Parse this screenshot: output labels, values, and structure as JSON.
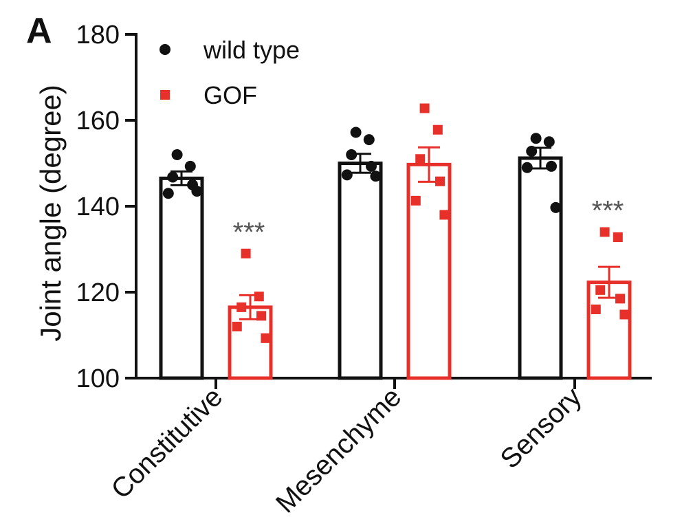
{
  "panel_label": "A",
  "chart_data": {
    "type": "bar",
    "categories": [
      "Constitutive",
      "Mesenchyme",
      "Sensory"
    ],
    "ylabel": "Joint angle (degree)",
    "xlabel": "",
    "ylim": [
      100,
      180
    ],
    "yticks": [
      100,
      120,
      140,
      160,
      180
    ],
    "legend_position": "top-left",
    "series": [
      {
        "name": "wild type",
        "color": "#111111",
        "marker": "circle",
        "values": [
          146.5,
          150.0,
          151.2
        ],
        "sem": [
          1.6,
          2.2,
          2.4
        ],
        "points": [
          [
            152.0,
            149.3,
            146.8,
            145.0,
            143.0,
            143.5
          ],
          [
            157.2,
            155.5,
            152.0,
            149.3,
            147.3,
            147.0
          ],
          [
            155.8,
            155.0,
            152.8,
            149.3,
            149.0,
            139.7
          ]
        ]
      },
      {
        "name": "GOF",
        "color": "#e8302a",
        "marker": "square",
        "values": [
          116.5,
          149.7,
          122.3
        ],
        "sem": [
          2.8,
          4.0,
          3.6
        ],
        "points": [
          [
            129.0,
            119.0,
            116.5,
            114.5,
            112.0,
            109.3
          ],
          [
            162.8,
            157.8,
            151.0,
            145.8,
            141.3,
            138.0
          ],
          [
            134.0,
            132.8,
            120.5,
            118.5,
            116.0,
            114.8
          ]
        ]
      }
    ],
    "annotations": [
      {
        "category": "Constitutive",
        "series": "GOF",
        "text": "***"
      },
      {
        "category": "Sensory",
        "series": "GOF",
        "text": "***"
      }
    ]
  }
}
